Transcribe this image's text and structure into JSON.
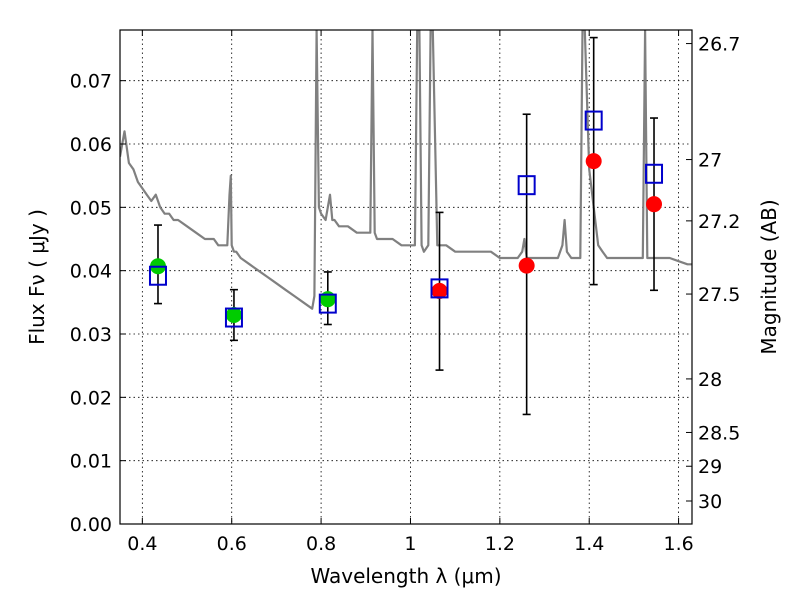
{
  "chart_data": {
    "type": "scatter",
    "title": "",
    "xlabel": "Wavelength  λ (μm)",
    "ylabel": "Flux  Fν  ( μJy )",
    "y2label": "Magnitude (AB)",
    "xlim": [
      0.35,
      1.63
    ],
    "ylim": [
      0.0,
      0.078
    ],
    "grid": true,
    "xticks": [
      {
        "value": 0.4,
        "label": "0.4"
      },
      {
        "value": 0.6,
        "label": "0.6"
      },
      {
        "value": 0.8,
        "label": "0.8"
      },
      {
        "value": 1.0,
        "label": "1"
      },
      {
        "value": 1.2,
        "label": "1.2"
      },
      {
        "value": 1.4,
        "label": "1.4"
      },
      {
        "value": 1.6,
        "label": "1.6"
      }
    ],
    "yticks": [
      {
        "value": 0.0,
        "label": "0.00"
      },
      {
        "value": 0.01,
        "label": "0.01"
      },
      {
        "value": 0.02,
        "label": "0.02"
      },
      {
        "value": 0.03,
        "label": "0.03"
      },
      {
        "value": 0.04,
        "label": "0.04"
      },
      {
        "value": 0.05,
        "label": "0.05"
      },
      {
        "value": 0.06,
        "label": "0.06"
      },
      {
        "value": 0.07,
        "label": "0.07"
      }
    ],
    "y2ticks": [
      {
        "mag": 26.7,
        "label": "26.7"
      },
      {
        "mag": 27.0,
        "label": "27"
      },
      {
        "mag": 27.2,
        "label": "27.2"
      },
      {
        "mag": 27.5,
        "label": "27.5"
      },
      {
        "mag": 28.0,
        "label": "28"
      },
      {
        "mag": 28.5,
        "label": "28.5"
      },
      {
        "mag": 29.0,
        "label": "29"
      },
      {
        "mag": 30.0,
        "label": "30"
      }
    ],
    "series": [
      {
        "kind": "line",
        "color": "#808080",
        "x": [
          0.35,
          0.36,
          0.37,
          0.38,
          0.39,
          0.4,
          0.41,
          0.42,
          0.43,
          0.44,
          0.45,
          0.46,
          0.47,
          0.48,
          0.5,
          0.52,
          0.54,
          0.56,
          0.57,
          0.58,
          0.59,
          0.595,
          0.598,
          0.6,
          0.605,
          0.61,
          0.62,
          0.64,
          0.66,
          0.68,
          0.7,
          0.72,
          0.74,
          0.76,
          0.78,
          0.785,
          0.79,
          0.795,
          0.8,
          0.81,
          0.815,
          0.82,
          0.825,
          0.83,
          0.84,
          0.86,
          0.88,
          0.9,
          0.91,
          0.915,
          0.92,
          0.925,
          0.93,
          0.94,
          0.96,
          0.98,
          1.0,
          1.01,
          1.015,
          1.02,
          1.025,
          1.03,
          1.04,
          1.045,
          1.05,
          1.06,
          1.07,
          1.08,
          1.1,
          1.12,
          1.14,
          1.16,
          1.18,
          1.2,
          1.22,
          1.24,
          1.25,
          1.255,
          1.26,
          1.27,
          1.28,
          1.3,
          1.32,
          1.33,
          1.34,
          1.345,
          1.35,
          1.36,
          1.38,
          1.385,
          1.39,
          1.4,
          1.41,
          1.42,
          1.43,
          1.44,
          1.46,
          1.48,
          1.5,
          1.51,
          1.52,
          1.525,
          1.53,
          1.54,
          1.55,
          1.56,
          1.57,
          1.58,
          1.6,
          1.62,
          1.63
        ],
        "y": [
          0.058,
          0.062,
          0.057,
          0.056,
          0.054,
          0.053,
          0.052,
          0.051,
          0.052,
          0.05,
          0.049,
          0.049,
          0.048,
          0.048,
          0.047,
          0.046,
          0.045,
          0.045,
          0.044,
          0.044,
          0.044,
          0.052,
          0.055,
          0.044,
          0.043,
          0.043,
          0.042,
          0.041,
          0.04,
          0.039,
          0.038,
          0.037,
          0.036,
          0.035,
          0.034,
          0.036,
          0.078,
          0.05,
          0.049,
          0.048,
          0.05,
          0.052,
          0.048,
          0.048,
          0.047,
          0.047,
          0.046,
          0.046,
          0.046,
          0.078,
          0.046,
          0.045,
          0.045,
          0.045,
          0.045,
          0.044,
          0.044,
          0.044,
          0.078,
          0.078,
          0.044,
          0.043,
          0.044,
          0.078,
          0.078,
          0.044,
          0.044,
          0.044,
          0.043,
          0.043,
          0.043,
          0.043,
          0.043,
          0.042,
          0.042,
          0.042,
          0.043,
          0.045,
          0.042,
          0.042,
          0.042,
          0.042,
          0.042,
          0.042,
          0.044,
          0.048,
          0.043,
          0.042,
          0.042,
          0.078,
          0.078,
          0.056,
          0.05,
          0.044,
          0.043,
          0.042,
          0.042,
          0.042,
          0.042,
          0.042,
          0.042,
          0.078,
          0.042,
          0.042,
          0.042,
          0.042,
          0.042,
          0.042,
          0.0415,
          0.041,
          0.041
        ]
      },
      {
        "kind": "points",
        "marker": "circle",
        "color": "#00cc00",
        "x": [
          0.435,
          0.605,
          0.815
        ],
        "y": [
          0.0407,
          0.033,
          0.0355
        ],
        "yerr_low": [
          0.0348,
          0.029,
          0.0315
        ],
        "yerr_high": [
          0.0472,
          0.037,
          0.0398
        ]
      },
      {
        "kind": "points",
        "marker": "circle",
        "color": "#ff0000",
        "x": [
          1.065,
          1.26,
          1.41,
          1.545
        ],
        "y": [
          0.0368,
          0.0408,
          0.0573,
          0.0505
        ],
        "yerr_low": [
          0.0243,
          0.0173,
          0.0378,
          0.0369
        ],
        "yerr_high": [
          0.0492,
          0.0647,
          0.0768,
          0.0641
        ]
      },
      {
        "kind": "points",
        "marker": "open-square",
        "color": "#0000cc",
        "x": [
          0.435,
          0.605,
          0.815,
          1.065,
          1.26,
          1.41,
          1.545
        ],
        "y": [
          0.0392,
          0.0326,
          0.0348,
          0.0372,
          0.0535,
          0.0637,
          0.0553
        ]
      }
    ]
  }
}
